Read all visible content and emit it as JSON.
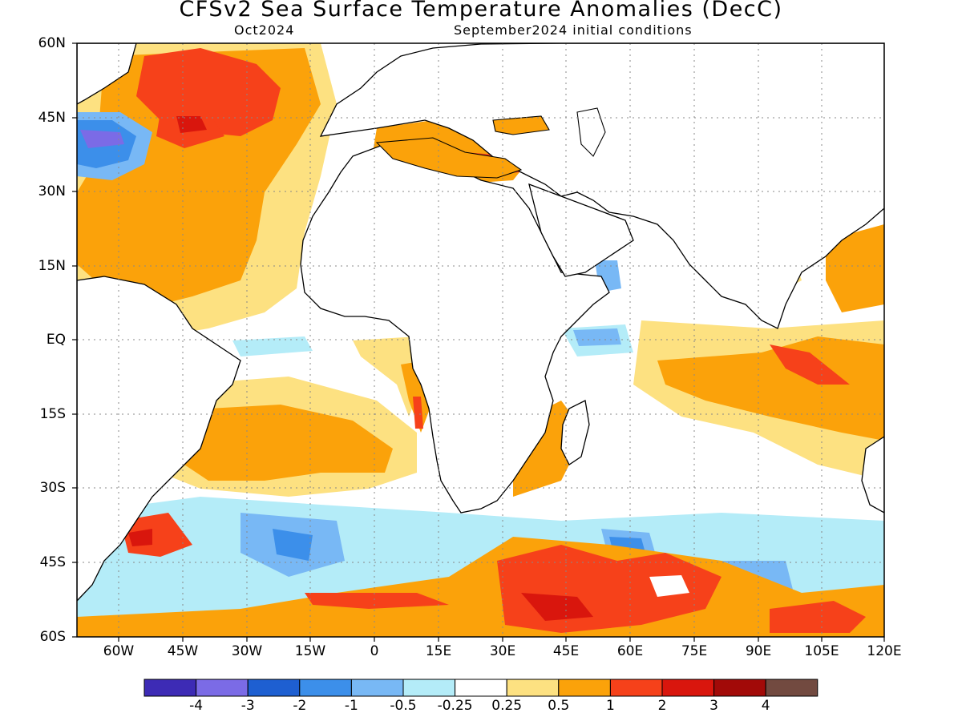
{
  "title": "CFSv2 Sea Surface Temperature Anomalies (DecC)",
  "subtitle_left": "Oct2024",
  "subtitle_right": "September2024 initial conditions",
  "map": {
    "lat_labels": [
      "60N",
      "45N",
      "30N",
      "15N",
      "EQ",
      "15S",
      "30S",
      "45S",
      "60S"
    ],
    "lon_labels": [
      "60W",
      "45W",
      "30W",
      "15W",
      "0",
      "15E",
      "30E",
      "45E",
      "60E",
      "75E",
      "90E",
      "105E",
      "120E"
    ]
  },
  "colorbar": {
    "colors": [
      "#3d2bb5",
      "#7b6be6",
      "#1e5fd1",
      "#3c8fea",
      "#78b8f5",
      "#b4ecf8",
      "#ffffff",
      "#fde181",
      "#fba20a",
      "#f6411a",
      "#d9160d",
      "#a20a08",
      "#724a40"
    ],
    "labels": [
      "-4",
      "-3",
      "-2",
      "-1",
      "-0.5",
      "-0.25",
      "0.25",
      "0.5",
      "1",
      "2",
      "3",
      "4"
    ]
  }
}
